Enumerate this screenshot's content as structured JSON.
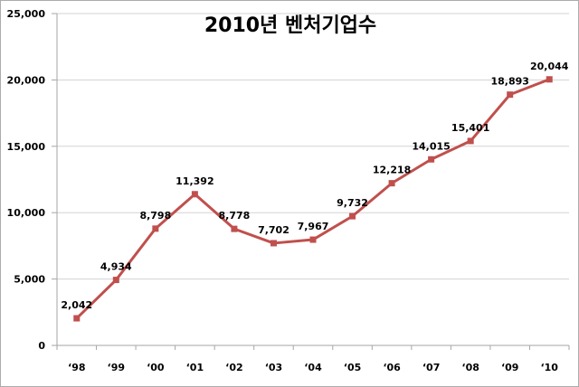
{
  "chart_data": {
    "type": "line",
    "title": "2010년 벤처기업수",
    "categories": [
      "‘98",
      "‘99",
      "‘00",
      "‘01",
      "‘02",
      "‘03",
      "‘04",
      "‘05",
      "‘06",
      "‘07",
      "‘08",
      "‘09",
      "‘10"
    ],
    "values": [
      2042,
      4934,
      8798,
      11392,
      8778,
      7702,
      7967,
      9732,
      12218,
      14015,
      15401,
      18893,
      20044
    ],
    "data_labels": [
      "2,042",
      "4,934",
      "8,798",
      "11,392",
      "8,778",
      "7,702",
      "7,967",
      "9,732",
      "12,218",
      "14,015",
      "15,401",
      "18,893",
      "20,044"
    ],
    "ylabel_ticks": [
      "0",
      "5,000",
      "10,000",
      "15,000",
      "20,000",
      "25,000"
    ],
    "ylim": [
      0,
      25000
    ],
    "ytick_interval": 5000,
    "grid": true,
    "legend": "none",
    "colors": {
      "series": "#C0504D",
      "gridline": "#D3D3D3",
      "axis": "#A6A6A6",
      "text": "#000000",
      "background": "#FFFFFF",
      "frame_border": "#ABABAB"
    }
  }
}
